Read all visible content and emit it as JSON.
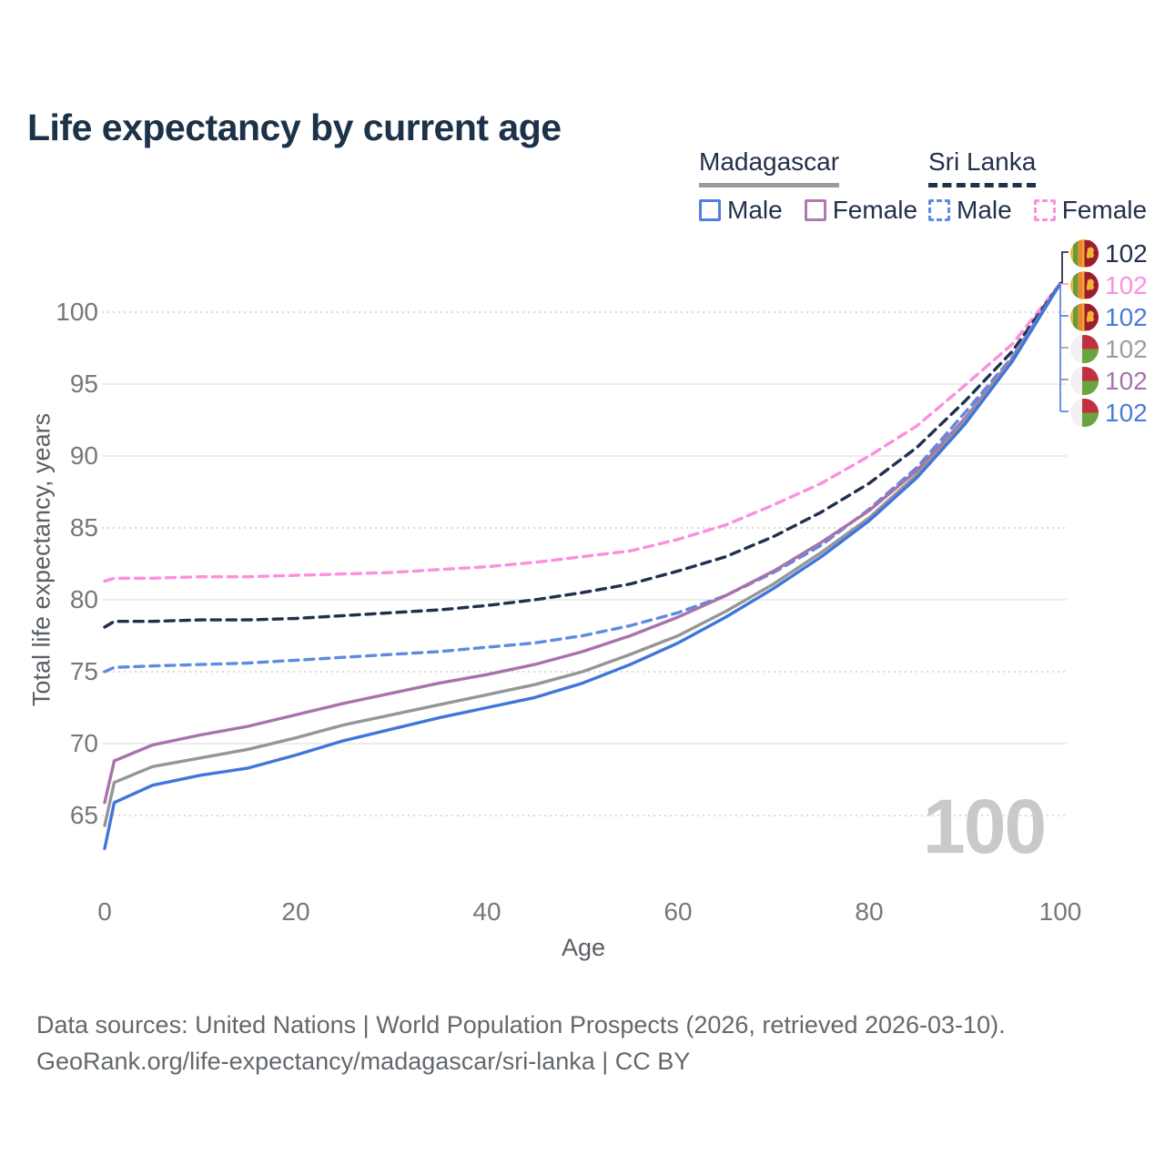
{
  "title": "Life expectancy by current age",
  "legend": {
    "madagascar": {
      "label": "Madagascar",
      "male": "Male",
      "female": "Female"
    },
    "sri_lanka": {
      "label": "Sri Lanka",
      "male": "Male",
      "female": "Female"
    }
  },
  "watermark": "100",
  "annotations": [
    {
      "flag": "sri-lanka",
      "series": "Sri Lanka (both sexes)",
      "value": "102",
      "color": "#22304d"
    },
    {
      "flag": "sri-lanka",
      "series": "Sri Lanka Female",
      "value": "102",
      "color": "#fb8fe0"
    },
    {
      "flag": "sri-lanka",
      "series": "Sri Lanka Male",
      "value": "102",
      "color": "#4a7cd6"
    },
    {
      "flag": "madagascar",
      "series": "Madagascar (both sexes)",
      "value": "102",
      "color": "#9e9e9e"
    },
    {
      "flag": "madagascar",
      "series": "Madagascar Female",
      "value": "102",
      "color": "#a873ab"
    },
    {
      "flag": "madagascar",
      "series": "Madagascar Male",
      "value": "102",
      "color": "#4a7cd6"
    }
  ],
  "footer": {
    "line1": "Data sources: United Nations | World Population Prospects (2026, retrieved 2026-03-10).",
    "line2": "GeoRank.org/life-expectancy/madagascar/sri-lanka | CC BY"
  },
  "chart_data": {
    "type": "line",
    "title": "Life expectancy by current age",
    "xlabel": "Age",
    "ylabel": "Total life expectancy, years",
    "x_axis": {
      "ticks": [
        0,
        20,
        40,
        60,
        80,
        100
      ],
      "range": [
        0,
        100
      ]
    },
    "y_axis": {
      "ticks": [
        65,
        70,
        75,
        80,
        85,
        90,
        95,
        100
      ],
      "range": [
        61,
        103
      ],
      "dotted_gridlines": [
        65,
        75,
        85,
        100
      ]
    },
    "legend_position": "top-right",
    "ages": [
      0,
      1,
      5,
      10,
      15,
      20,
      25,
      30,
      35,
      40,
      45,
      50,
      55,
      60,
      65,
      70,
      75,
      80,
      85,
      90,
      95,
      100
    ],
    "series": [
      {
        "name": "Sri Lanka Female",
        "country": "Sri Lanka",
        "sex": "Female",
        "color": "#fb8fe0",
        "dash": "10 7",
        "values": [
          81.3,
          81.5,
          81.5,
          81.6,
          81.6,
          81.7,
          81.8,
          81.9,
          82.1,
          82.3,
          82.6,
          83.0,
          83.4,
          84.2,
          85.2,
          86.6,
          88.1,
          90.0,
          92.1,
          94.9,
          97.8,
          102
        ]
      },
      {
        "name": "Sri Lanka (both sexes)",
        "country": "Sri Lanka",
        "sex": "Both",
        "color": "#20304f",
        "dash": "10 7",
        "values": [
          78.1,
          78.5,
          78.5,
          78.6,
          78.6,
          78.7,
          78.9,
          79.1,
          79.3,
          79.6,
          80.0,
          80.5,
          81.1,
          82.0,
          83.0,
          84.4,
          86.1,
          88.1,
          90.6,
          93.8,
          97.3,
          102
        ]
      },
      {
        "name": "Sri Lanka Male",
        "country": "Sri Lanka",
        "sex": "Male",
        "color": "#5e8ae4",
        "dash": "10 7",
        "values": [
          75.0,
          75.3,
          75.4,
          75.5,
          75.6,
          75.8,
          76.0,
          76.2,
          76.4,
          76.7,
          77.0,
          77.5,
          78.2,
          79.1,
          80.3,
          81.9,
          83.8,
          86.3,
          89.2,
          93.0,
          96.9,
          102
        ]
      },
      {
        "name": "Madagascar Female",
        "country": "Madagascar",
        "sex": "Female",
        "color": "#a873ab",
        "dash": null,
        "values": [
          65.9,
          68.8,
          69.9,
          70.6,
          71.2,
          72.0,
          72.8,
          73.5,
          74.2,
          74.8,
          75.5,
          76.4,
          77.5,
          78.8,
          80.3,
          82.0,
          84.0,
          86.2,
          89.0,
          92.6,
          96.8,
          102
        ]
      },
      {
        "name": "Madagascar (both sexes)",
        "country": "Madagascar",
        "sex": "Both",
        "color": "#969696",
        "dash": null,
        "values": [
          64.3,
          67.3,
          68.4,
          69.0,
          69.6,
          70.4,
          71.3,
          72.0,
          72.7,
          73.4,
          74.1,
          75.0,
          76.2,
          77.5,
          79.2,
          81.1,
          83.3,
          85.7,
          88.7,
          92.4,
          96.7,
          102
        ]
      },
      {
        "name": "Madagascar Male",
        "country": "Madagascar",
        "sex": "Male",
        "color": "#3e76dc",
        "dash": null,
        "values": [
          62.7,
          65.9,
          67.1,
          67.8,
          68.3,
          69.2,
          70.2,
          71.0,
          71.8,
          72.5,
          73.2,
          74.2,
          75.5,
          77.0,
          78.8,
          80.8,
          83.0,
          85.5,
          88.5,
          92.2,
          96.6,
          102
        ]
      }
    ]
  }
}
